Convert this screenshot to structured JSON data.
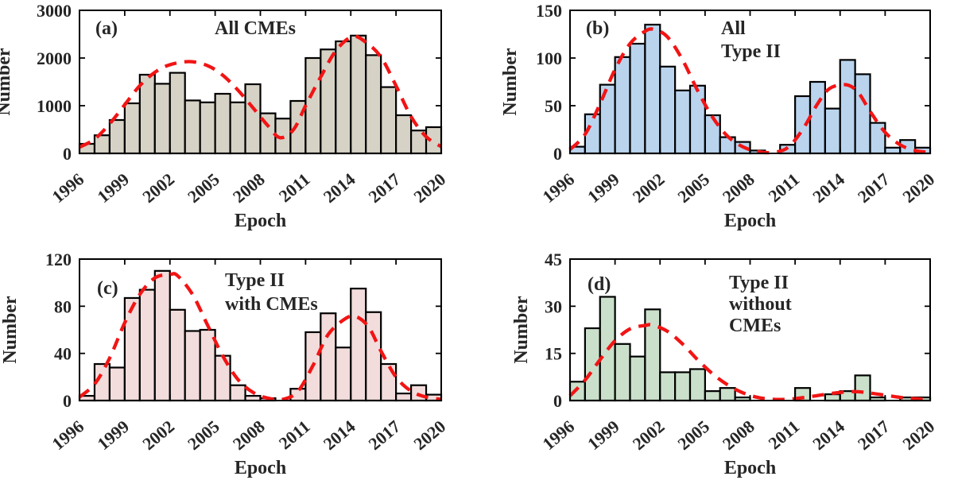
{
  "figure": {
    "background": "#ffffff",
    "text_color": "#262626",
    "axis_color": "#000000",
    "curve_color": "#f21414",
    "curve_style": "dashed",
    "xlabel": "Epoch",
    "ylabel": "Number"
  },
  "chart_data": [
    {
      "id": "a",
      "type": "bar",
      "panel_label": "(a)",
      "title_lines": [
        "All CMEs"
      ],
      "bar_color": "#d6d2c6",
      "xlabel": "Epoch",
      "ylabel": "Number",
      "years": [
        1996,
        1997,
        1998,
        1999,
        2000,
        2001,
        2002,
        2003,
        2004,
        2005,
        2006,
        2007,
        2008,
        2009,
        2010,
        2011,
        2012,
        2013,
        2014,
        2015,
        2016,
        2017,
        2018,
        2019
      ],
      "values": [
        200,
        380,
        700,
        1050,
        1650,
        1460,
        1690,
        1110,
        1070,
        1250,
        1070,
        1450,
        840,
        730,
        1100,
        2000,
        2180,
        2350,
        2470,
        2060,
        1390,
        800,
        480,
        550
      ],
      "ylim": [
        0,
        3000
      ],
      "yticks": [
        0,
        1000,
        2000,
        3000
      ],
      "xticks": [
        1996,
        1999,
        2002,
        2005,
        2008,
        2011,
        2014,
        2017,
        2020
      ],
      "fit_curve": {
        "x": [
          1996,
          1997,
          1998,
          1999,
          2000,
          2001,
          2002,
          2003.3,
          2004.5,
          2005.5,
          2006.5,
          2007.5,
          2008.5,
          2009.3,
          2010.2,
          2011,
          2012,
          2013,
          2014.1,
          2015,
          2016,
          2017,
          2018,
          2019,
          2020
        ],
        "y": [
          130,
          300,
          620,
          1020,
          1420,
          1700,
          1860,
          1925,
          1840,
          1640,
          1330,
          960,
          580,
          330,
          500,
          1000,
          1600,
          2150,
          2450,
          2330,
          2020,
          1420,
          770,
          350,
          140
        ]
      }
    },
    {
      "id": "b",
      "type": "bar",
      "panel_label": "(b)",
      "title_lines": [
        "All",
        "Type II"
      ],
      "bar_color": "#bad4ee",
      "xlabel": "Epoch",
      "ylabel": "Number",
      "years": [
        1996,
        1997,
        1998,
        1999,
        2000,
        2001,
        2002,
        2003,
        2004,
        2005,
        2006,
        2007,
        2008,
        2009,
        2010,
        2011,
        2012,
        2013,
        2014,
        2015,
        2016,
        2017,
        2018,
        2019
      ],
      "values": [
        7,
        41,
        72,
        101,
        115,
        135,
        91,
        66,
        71,
        40,
        17,
        12,
        3,
        0,
        9,
        60,
        75,
        47,
        98,
        83,
        32,
        6,
        14,
        6
      ],
      "ylim": [
        0,
        150
      ],
      "yticks": [
        0,
        50,
        100,
        150
      ],
      "xticks": [
        1996,
        1999,
        2002,
        2005,
        2008,
        2011,
        2014,
        2017,
        2020
      ],
      "fit_curve": {
        "x": [
          1996,
          1997,
          1998,
          1999,
          2000,
          2001,
          2001.6,
          2002.5,
          2003.5,
          2004.5,
          2005.5,
          2006.5,
          2007.5,
          2008.5,
          2009.5,
          2010.5,
          2011.5,
          2012.5,
          2013.3,
          2014.4,
          2015.2,
          2016,
          2017,
          2018,
          2019,
          2020
        ],
        "y": [
          4,
          20,
          52,
          88,
          115,
          128,
          130,
          122,
          98,
          66,
          38,
          18,
          7,
          2,
          1,
          6,
          25,
          52,
          68,
          72,
          64,
          44,
          22,
          9,
          3,
          1
        ]
      }
    },
    {
      "id": "c",
      "type": "bar",
      "panel_label": "(c)",
      "title_lines": [
        "Type II",
        "with CMEs"
      ],
      "bar_color": "#f2dcdc",
      "xlabel": "Epoch",
      "ylabel": "Number",
      "years": [
        1996,
        1997,
        1998,
        1999,
        2000,
        2001,
        2002,
        2003,
        2004,
        2005,
        2006,
        2007,
        2008,
        2009,
        2010,
        2011,
        2012,
        2013,
        2014,
        2015,
        2016,
        2017,
        2018,
        2019
      ],
      "values": [
        4,
        31,
        28,
        87,
        94,
        110,
        77,
        59,
        60,
        38,
        13,
        4,
        2,
        0,
        10,
        58,
        74,
        45,
        95,
        75,
        31,
        6,
        13,
        5
      ],
      "ylim": [
        0,
        120
      ],
      "yticks": [
        0,
        40,
        80,
        120
      ],
      "xticks": [
        1996,
        1999,
        2002,
        2005,
        2008,
        2011,
        2014,
        2017,
        2020
      ],
      "fit_curve": {
        "x": [
          1996,
          1997,
          1998,
          1999,
          2000,
          2001,
          2002,
          2002.5,
          2003.5,
          2004.5,
          2005.5,
          2006.5,
          2007.5,
          2008.5,
          2009.5,
          2010.5,
          2011.5,
          2012.5,
          2013.7,
          2014.4,
          2015.2,
          2016,
          2017,
          2018,
          2019,
          2020
        ],
        "y": [
          3,
          14,
          36,
          66,
          90,
          104,
          107,
          106,
          90,
          64,
          38,
          18,
          7,
          2,
          1,
          8,
          30,
          56,
          70,
          71,
          62,
          42,
          20,
          8,
          3,
          1
        ]
      }
    },
    {
      "id": "d",
      "type": "bar",
      "panel_label": "(d)",
      "title_lines": [
        "Type II",
        "without",
        "CMEs"
      ],
      "bar_color": "#cae0ca",
      "xlabel": "Epoch",
      "ylabel": "Number",
      "years": [
        1996,
        1997,
        1998,
        1999,
        2000,
        2001,
        2002,
        2003,
        2004,
        2005,
        2006,
        2007,
        2008,
        2009,
        2010,
        2011,
        2012,
        2013,
        2014,
        2015,
        2016,
        2017,
        2018,
        2019
      ],
      "values": [
        6,
        23,
        33,
        18,
        14,
        29,
        9,
        9,
        10,
        3,
        4,
        1,
        0,
        0,
        0,
        4,
        0,
        2,
        3,
        8,
        1,
        0,
        1,
        1
      ],
      "ylim": [
        0,
        45
      ],
      "yticks": [
        0,
        15,
        30,
        45
      ],
      "xticks": [
        1996,
        1999,
        2002,
        2005,
        2008,
        2011,
        2014,
        2017,
        2020
      ],
      "fit_curve": {
        "x": [
          1996,
          1997,
          1998,
          1999,
          2000,
          2001,
          2001.5,
          2002.5,
          2003.5,
          2004.5,
          2005.5,
          2006.5,
          2007.5,
          2008.5,
          2009.5,
          2010.5,
          2011.5,
          2012.5,
          2013.5,
          2014.5,
          2015.2,
          2016,
          2017,
          2018,
          2019,
          2020
        ],
        "y": [
          1.5,
          6.5,
          13,
          19,
          22.8,
          23.9,
          24,
          22,
          18,
          13,
          8.5,
          5,
          2.5,
          1,
          0.4,
          0.4,
          0.9,
          1.6,
          2.3,
          2.8,
          2.8,
          2.4,
          1.7,
          1,
          0.6,
          0.3
        ]
      }
    }
  ]
}
